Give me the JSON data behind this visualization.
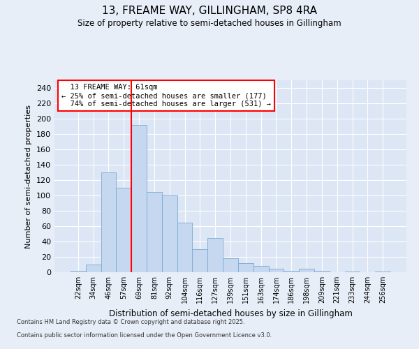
{
  "title": "13, FREAME WAY, GILLINGHAM, SP8 4RA",
  "subtitle": "Size of property relative to semi-detached houses in Gillingham",
  "xlabel": "Distribution of semi-detached houses by size in Gillingham",
  "ylabel": "Number of semi-detached properties",
  "categories": [
    "22sqm",
    "34sqm",
    "46sqm",
    "57sqm",
    "69sqm",
    "81sqm",
    "92sqm",
    "104sqm",
    "116sqm",
    "127sqm",
    "139sqm",
    "151sqm",
    "163sqm",
    "174sqm",
    "186sqm",
    "198sqm",
    "209sqm",
    "221sqm",
    "233sqm",
    "244sqm",
    "256sqm"
  ],
  "values": [
    2,
    10,
    130,
    110,
    192,
    105,
    100,
    65,
    30,
    45,
    18,
    12,
    8,
    5,
    2,
    5,
    2,
    0,
    1,
    0,
    1
  ],
  "bar_color": "#c5d8f0",
  "bar_edge_color": "#7aaad0",
  "redline_label": "13 FREAME WAY: 61sqm",
  "pct_smaller": "25% of semi-detached houses are smaller (177)",
  "pct_larger": "74% of semi-detached houses are larger (531)",
  "redline_x": 3.5,
  "ylim": [
    0,
    250
  ],
  "yticks": [
    0,
    20,
    40,
    60,
    80,
    100,
    120,
    140,
    160,
    180,
    200,
    220,
    240
  ],
  "background_color": "#dce6f5",
  "grid_color": "#ffffff",
  "fig_background": "#e8eef8",
  "footnote1": "Contains HM Land Registry data © Crown copyright and database right 2025.",
  "footnote2": "Contains public sector information licensed under the Open Government Licence v3.0."
}
